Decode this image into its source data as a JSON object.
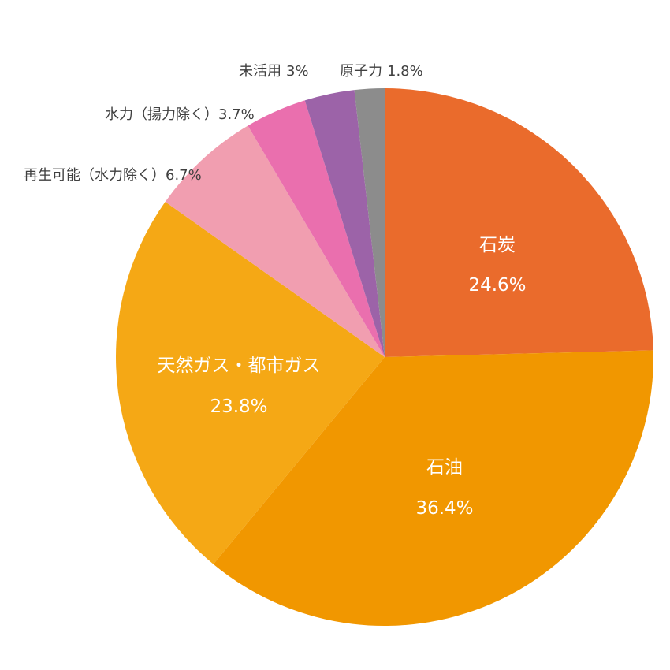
{
  "chart_data": {
    "type": "pie",
    "slices": [
      {
        "label": "石炭",
        "value": 24.6,
        "value_text": "24.6%",
        "color": "#EA6B2C",
        "label_style": "inside"
      },
      {
        "label": "石油",
        "value": 36.4,
        "value_text": "36.4%",
        "color": "#F19700",
        "label_style": "inside"
      },
      {
        "label": "天然ガス・都市ガス",
        "value": 23.8,
        "value_text": "23.8%",
        "color": "#F5A815",
        "label_style": "inside"
      },
      {
        "label": "再生可能（水力除く）",
        "value": 6.7,
        "value_text": "6.7%",
        "color": "#F19EB0",
        "label_style": "outside"
      },
      {
        "label": "水力（揚力除く）",
        "value": 3.7,
        "value_text": "3.7%",
        "color": "#EA6FAE",
        "label_style": "outside"
      },
      {
        "label": "未活用",
        "value": 3.0,
        "value_text": "3%",
        "color": "#9C63A8",
        "label_style": "outside"
      },
      {
        "label": "原子力",
        "value": 1.8,
        "value_text": "1.8%",
        "color": "#8C8C8C",
        "label_style": "outside"
      }
    ],
    "start_angle": "12 o'clock",
    "direction": "clockwise",
    "legend": "none"
  }
}
